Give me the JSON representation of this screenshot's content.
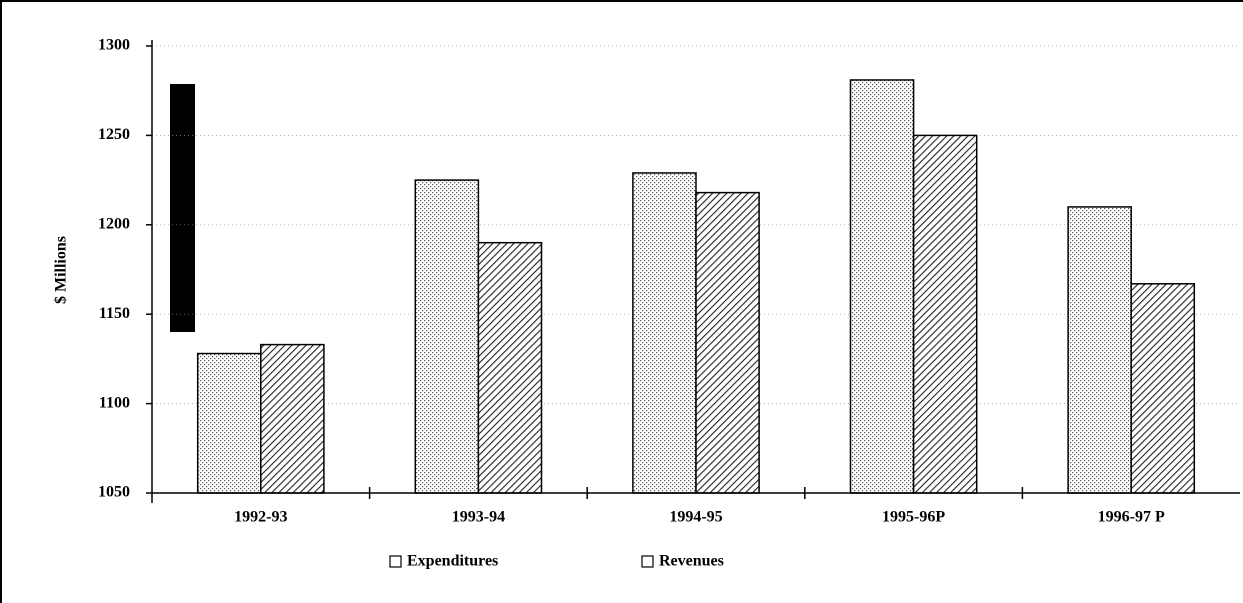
{
  "chart_data": {
    "type": "bar",
    "y_label": "$ Millions",
    "categories": [
      "1992-93",
      "1993-94",
      "1994-95",
      "1995-96P",
      "1996-97 P"
    ],
    "series": [
      {
        "name": "Expenditures",
        "color": "#d9d9d9",
        "values": [
          1128,
          1225,
          1229,
          1281,
          1210
        ]
      },
      {
        "name": "Revenues",
        "color": "#a6a6a6",
        "values": [
          1133,
          1190,
          1218,
          1250,
          1167
        ]
      }
    ],
    "ylim": [
      1050,
      1300
    ],
    "yticks": [
      1050,
      1100,
      1150,
      1200,
      1250,
      1300
    ],
    "grid": true
  }
}
